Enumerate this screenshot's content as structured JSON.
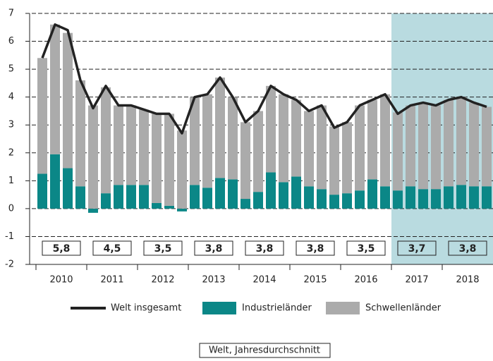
{
  "chart_data": {
    "type": "bar",
    "categories": [
      null,
      null,
      null,
      null,
      null,
      null,
      null,
      null,
      null,
      null,
      null,
      null,
      null,
      null,
      null,
      null,
      null,
      null,
      null,
      null,
      null,
      null,
      null,
      null,
      null,
      null,
      null,
      null,
      null,
      null,
      null,
      null,
      null,
      null,
      null,
      null
    ],
    "year_labels": [
      "2010",
      "2011",
      "2012",
      "2013",
      "2014",
      "2015",
      "2016",
      "2017",
      "2018"
    ],
    "series": [
      {
        "name": "Industrieländer",
        "color": "#0b8787",
        "values": [
          1.25,
          1.95,
          1.45,
          0.8,
          -0.15,
          0.55,
          0.85,
          0.85,
          0.85,
          0.2,
          0.1,
          -0.1,
          0.85,
          0.75,
          1.1,
          1.05,
          0.35,
          0.6,
          1.3,
          0.95,
          1.15,
          0.8,
          0.7,
          0.5,
          0.55,
          0.65,
          1.05,
          0.8,
          0.65,
          0.8,
          0.7,
          0.7,
          0.8,
          0.85,
          0.8,
          0.8
        ]
      },
      {
        "name": "Schwellenländer",
        "color": "#ababab",
        "values": [
          4.15,
          4.65,
          4.85,
          3.8,
          3.7,
          3.8,
          2.85,
          2.85,
          2.7,
          3.2,
          3.3,
          2.8,
          3.15,
          3.35,
          3.6,
          2.95,
          2.75,
          2.9,
          3.1,
          3.15,
          2.75,
          2.7,
          3.0,
          2.45,
          2.55,
          3.05,
          2.85,
          3.3,
          2.8,
          2.9,
          3.1,
          3.0,
          3.1,
          3.15,
          3.0,
          2.85
        ]
      },
      {
        "name": "Welt insgesamt",
        "type": "line",
        "color": "#222222",
        "values": [
          5.4,
          6.6,
          6.4,
          4.6,
          3.6,
          4.4,
          3.7,
          3.7,
          3.55,
          3.4,
          3.4,
          2.7,
          4.0,
          4.1,
          4.7,
          4.0,
          3.1,
          3.5,
          4.4,
          4.1,
          3.9,
          3.5,
          3.7,
          2.9,
          3.1,
          3.7,
          3.9,
          4.1,
          3.4,
          3.7,
          3.8,
          3.7,
          3.9,
          4.0,
          3.8,
          3.65
        ]
      }
    ],
    "annual_average": {
      "name": "Welt, Jahresdurchschnitt",
      "values": [
        5.8,
        4.5,
        3.5,
        3.8,
        3.8,
        3.8,
        3.5,
        3.7,
        3.8
      ],
      "value_labels": [
        "5,8",
        "4,5",
        "3,5",
        "3,8",
        "3,8",
        "3,8",
        "3,5",
        "3,7",
        "3,8"
      ]
    },
    "shaded_from": "2017",
    "shade_color": "#b9dbe0",
    "ylim": [
      -2,
      7
    ],
    "yticks": [
      -2,
      -1,
      0,
      1,
      2,
      3,
      4,
      5,
      6,
      7
    ],
    "grid": true
  }
}
